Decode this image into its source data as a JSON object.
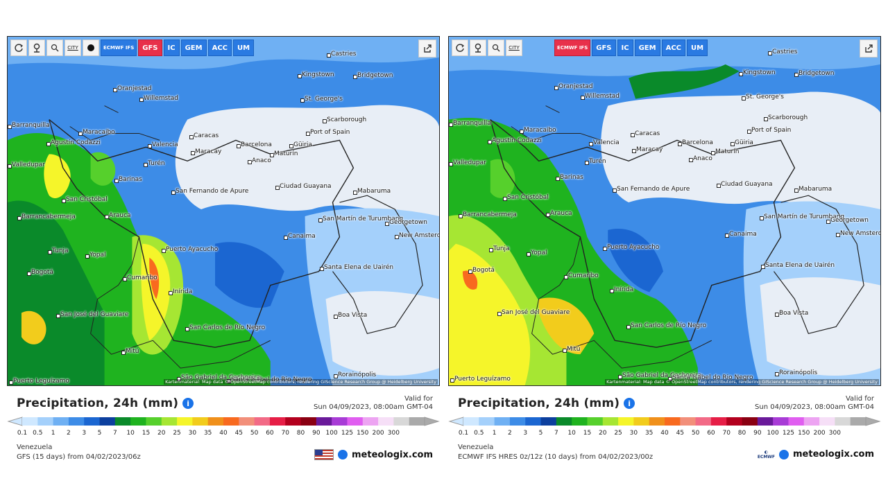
{
  "legend": {
    "colors": [
      "#cfe8ff",
      "#a4d0fb",
      "#6fb0f3",
      "#3d8ce7",
      "#1b66d1",
      "#0c3f9e",
      "#0a8a2a",
      "#1fb31f",
      "#56d02c",
      "#a6e633",
      "#f5f52a",
      "#f2cc1c",
      "#f0901b",
      "#f86a1f",
      "#f28f7a",
      "#f26a86",
      "#e61e46",
      "#b3001e",
      "#8a0012",
      "#6a1a9a",
      "#a83cd6",
      "#e05ef0",
      "#eda4f2",
      "#f6dff7",
      "#d8d8d8",
      "#aaaaaa"
    ],
    "ticks": [
      "0.1",
      "0.5",
      "1",
      "2",
      "3",
      "5",
      "7",
      "10",
      "15",
      "20",
      "25",
      "30",
      "35",
      "40",
      "45",
      "50",
      "60",
      "70",
      "80",
      "90",
      "100",
      "125",
      "150",
      "200",
      "300"
    ]
  },
  "places": [
    {
      "name": "Castries"
    },
    {
      "name": "Kingstown"
    },
    {
      "name": "Bridgetown"
    },
    {
      "name": "Oranjestad"
    },
    {
      "name": "Willemstad"
    },
    {
      "name": "St. George's"
    },
    {
      "name": "Scarborough"
    },
    {
      "name": "Port of Spain"
    },
    {
      "name": "Maracaibo"
    },
    {
      "name": "Caracas"
    },
    {
      "name": "Valencia"
    },
    {
      "name": "Maracay"
    },
    {
      "name": "Barcelona"
    },
    {
      "name": "Güiria"
    },
    {
      "name": "Agustín Codazzi"
    },
    {
      "name": "Barranquilla"
    },
    {
      "name": "Valledupar"
    },
    {
      "name": "Maturín"
    },
    {
      "name": "Anaco"
    },
    {
      "name": "Turén"
    },
    {
      "name": "Barinas"
    },
    {
      "name": "San Cristóbal"
    },
    {
      "name": "San Fernando de Apure"
    },
    {
      "name": "Ciudad Guayana"
    },
    {
      "name": "Mabaruma"
    },
    {
      "name": "Barrancabermeja"
    },
    {
      "name": "Arauca"
    },
    {
      "name": "San Martín de Turumbang"
    },
    {
      "name": "Georgetown"
    },
    {
      "name": "New Amsterdam"
    },
    {
      "name": "Canaima"
    },
    {
      "name": "Puerto Ayacucho"
    },
    {
      "name": "Tunja"
    },
    {
      "name": "Yopal"
    },
    {
      "name": "Bogotá"
    },
    {
      "name": "Cumaribo"
    },
    {
      "name": "Santa Elena de Uairén"
    },
    {
      "name": "Inírida"
    },
    {
      "name": "Boa Vista"
    },
    {
      "name": "San José del Guaviare"
    },
    {
      "name": "San Carlos de Río Negro"
    },
    {
      "name": "Mitú"
    },
    {
      "name": "Rorainópolis"
    },
    {
      "name": "São Gabriel da Cachoeira"
    },
    {
      "name": "Santa Isabel do Rio Negro"
    },
    {
      "name": "Puerto Leguízamo"
    }
  ],
  "left": {
    "toolbar": {
      "city_label": "CITY",
      "models": [
        "ECMWF IFS",
        "GFS",
        "IC",
        "GEM",
        "ACC",
        "UM"
      ],
      "active_model": "GFS"
    },
    "title": "Precipitation, 24h (mm)",
    "valid_label": "Valid for",
    "valid_time": "Sun 04/09/2023, 08:00am GMT-04",
    "region": "Venezuela",
    "run": "GFS (15 days) from 04/02/2023/06z",
    "brand": "meteologix.com",
    "attribution": "Kartenmaterial: Map data © OpenStreetMap contributors, rendering GIScience Research Group @ Heidelberg University"
  },
  "right": {
    "toolbar": {
      "city_label": "CITY",
      "models": [
        "ECMWF IFS",
        "GFS",
        "IC",
        "GEM",
        "ACC",
        "UM"
      ],
      "active_model": "ECMWF IFS"
    },
    "title": "Precipitation, 24h (mm)",
    "valid_label": "Valid for",
    "valid_time": "Sun 04/09/2023, 08:00am GMT-04",
    "region": "Venezuela",
    "run": "ECMWF IFS HRES 0z/12z (10 days) from 04/02/2023/00z",
    "brand": "meteologix.com",
    "logo_text": "ECMWF",
    "attribution": "Kartenmaterial: Map data © OpenStreetMap contributors, rendering GIScience Research Group @ Heidelberg University"
  }
}
